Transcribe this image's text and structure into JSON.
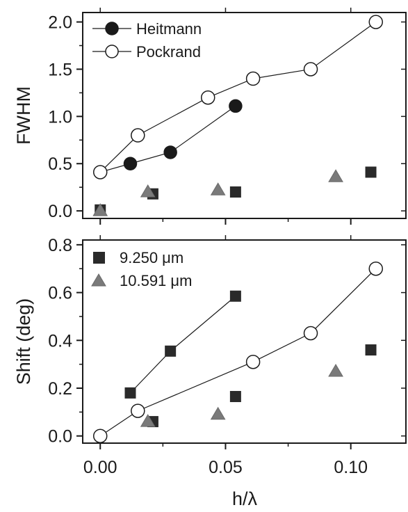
{
  "chart_data": [
    {
      "type": "scatter",
      "title": "",
      "xlabel": "",
      "ylabel": "FWHM",
      "xlim": [
        -0.007,
        0.122
      ],
      "ylim": [
        -0.08,
        2.1
      ],
      "yticks": [
        "0.0",
        "0.5",
        "1.0",
        "1.5",
        "2.0"
      ],
      "legend_placement": "top-left",
      "series": [
        {
          "name": "Heitmann",
          "marker": "filled-circle",
          "line": true,
          "color": "#1a1a1a",
          "x": [
            0.0,
            0.012,
            0.028,
            0.054
          ],
          "y": [
            0.41,
            0.5,
            0.62,
            1.11
          ]
        },
        {
          "name": "Pockrand",
          "marker": "open-circle",
          "line": true,
          "color": "#1a1a1a",
          "x": [
            0.0,
            0.015,
            0.043,
            0.061,
            0.084,
            0.11
          ],
          "y": [
            0.41,
            0.8,
            1.2,
            1.4,
            1.5,
            2.0
          ]
        },
        {
          "name": "",
          "marker": "square",
          "line": false,
          "color": "#2a2a2a",
          "x": [
            0.0,
            0.021,
            0.054,
            0.108
          ],
          "y": [
            0.01,
            0.18,
            0.2,
            0.41
          ]
        },
        {
          "name": "",
          "marker": "triangle",
          "line": false,
          "color": "#7a7a7a",
          "x": [
            0.0,
            0.019,
            0.047,
            0.094
          ],
          "y": [
            0.0,
            0.2,
            0.22,
            0.36
          ]
        }
      ]
    },
    {
      "type": "scatter",
      "title": "",
      "xlabel": "h/λ",
      "ylabel": "Shift (deg)",
      "xlim": [
        -0.007,
        0.122
      ],
      "ylim": [
        -0.03,
        0.82
      ],
      "yticks": [
        "0.0",
        "0.2",
        "0.4",
        "0.6",
        "0.8"
      ],
      "xticks": [
        "0.00",
        "0.05",
        "0.10"
      ],
      "legend_placement": "top-left",
      "series": [
        {
          "name": "9.250 μm",
          "marker": "square",
          "line": false,
          "color": "#2a2a2a",
          "x": [
            0.021,
            0.054,
            0.108
          ],
          "y": [
            0.06,
            0.165,
            0.36
          ]
        },
        {
          "name": "10.591 μm",
          "marker": "triangle",
          "line": false,
          "color": "#7a7a7a",
          "x": [
            0.019,
            0.047,
            0.094
          ],
          "y": [
            0.06,
            0.09,
            0.27
          ]
        },
        {
          "name": "",
          "marker": "square",
          "line": true,
          "color": "#2a2a2a",
          "x": [
            0.012,
            0.028,
            0.054
          ],
          "y": [
            0.18,
            0.355,
            0.585
          ]
        },
        {
          "name": "",
          "marker": "open-circle",
          "line": true,
          "color": "#1a1a1a",
          "x": [
            0.0,
            0.015,
            0.061,
            0.084,
            0.11
          ],
          "y": [
            0.0,
            0.105,
            0.31,
            0.43,
            0.7
          ]
        }
      ]
    }
  ]
}
